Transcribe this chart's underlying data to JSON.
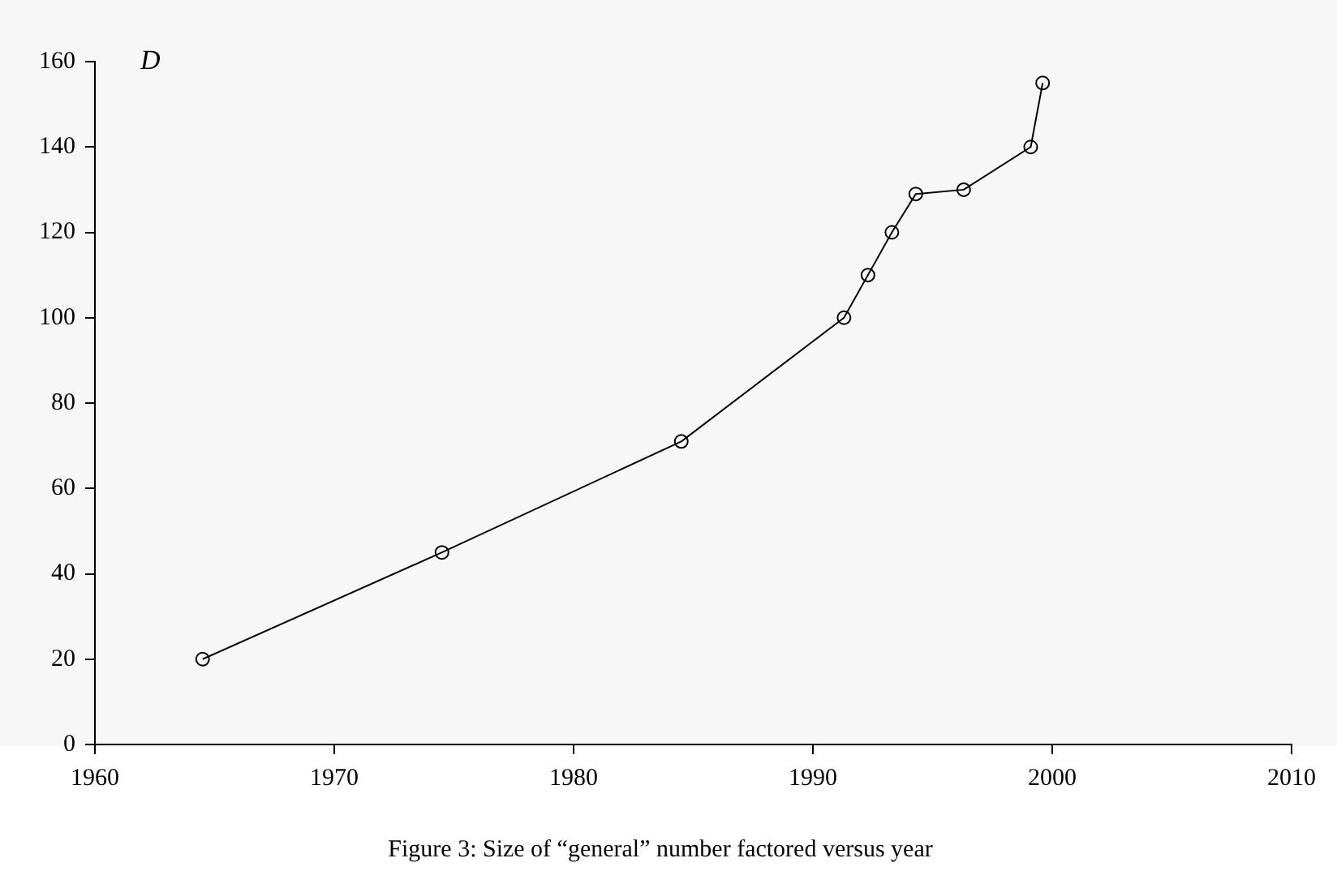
{
  "chart_data": {
    "type": "line",
    "title": "Figure 3: Size of “general” number factored versus year",
    "ylabel": "D",
    "x": [
      1964.5,
      1974.5,
      1984.5,
      1991.3,
      1992.3,
      1993.3,
      1994.3,
      1996.3,
      1999.1,
      1999.6
    ],
    "series": [
      {
        "color": "#000000",
        "values": [
          20,
          45,
          71,
          100,
          110,
          120,
          129,
          130,
          140,
          155
        ]
      }
    ],
    "xlim": [
      1960,
      2010
    ],
    "xticks": [
      1960,
      1970,
      1980,
      1990,
      2000,
      2010
    ],
    "ylim": [
      0,
      160
    ],
    "yticks": [
      0,
      20,
      40,
      60,
      80,
      100,
      120,
      140,
      160
    ],
    "grid": false,
    "legend": false,
    "marker": "circle",
    "line_style": "solid"
  }
}
